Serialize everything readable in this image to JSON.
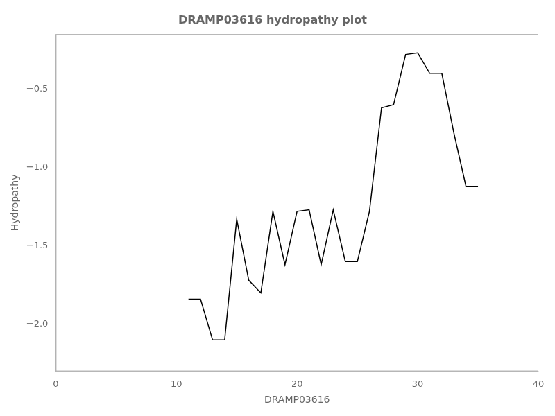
{
  "chart_data": {
    "type": "line",
    "title": "DRAMP03616 hydropathy plot",
    "xlabel": "DRAMP03616",
    "ylabel": "Hydropathy",
    "x": [
      11,
      12,
      13,
      14,
      15,
      16,
      17,
      18,
      19,
      20,
      21,
      22,
      23,
      24,
      25,
      26,
      27,
      28,
      29,
      30,
      31,
      32,
      33,
      34,
      35
    ],
    "values": [
      -1.84,
      -1.84,
      -2.1,
      -2.1,
      -1.33,
      -1.72,
      -1.8,
      -1.28,
      -1.62,
      -1.28,
      -1.27,
      -1.62,
      -1.27,
      -1.6,
      -1.6,
      -1.28,
      -0.62,
      -0.6,
      -0.28,
      -0.27,
      -0.4,
      -0.4,
      -0.78,
      -1.12,
      -1.12
    ],
    "color": "#000000",
    "xlim": [
      0,
      40
    ],
    "xticks": [
      0,
      10,
      20,
      30,
      40
    ],
    "ylim": [
      -2.3,
      -0.15
    ],
    "yticks": [
      {
        "value": -2.0,
        "label": "−2.0"
      },
      {
        "value": -1.5,
        "label": "−1.5"
      },
      {
        "value": -1.0,
        "label": "−1.0"
      },
      {
        "value": -0.5,
        "label": "−0.5"
      }
    ],
    "grid": false
  }
}
